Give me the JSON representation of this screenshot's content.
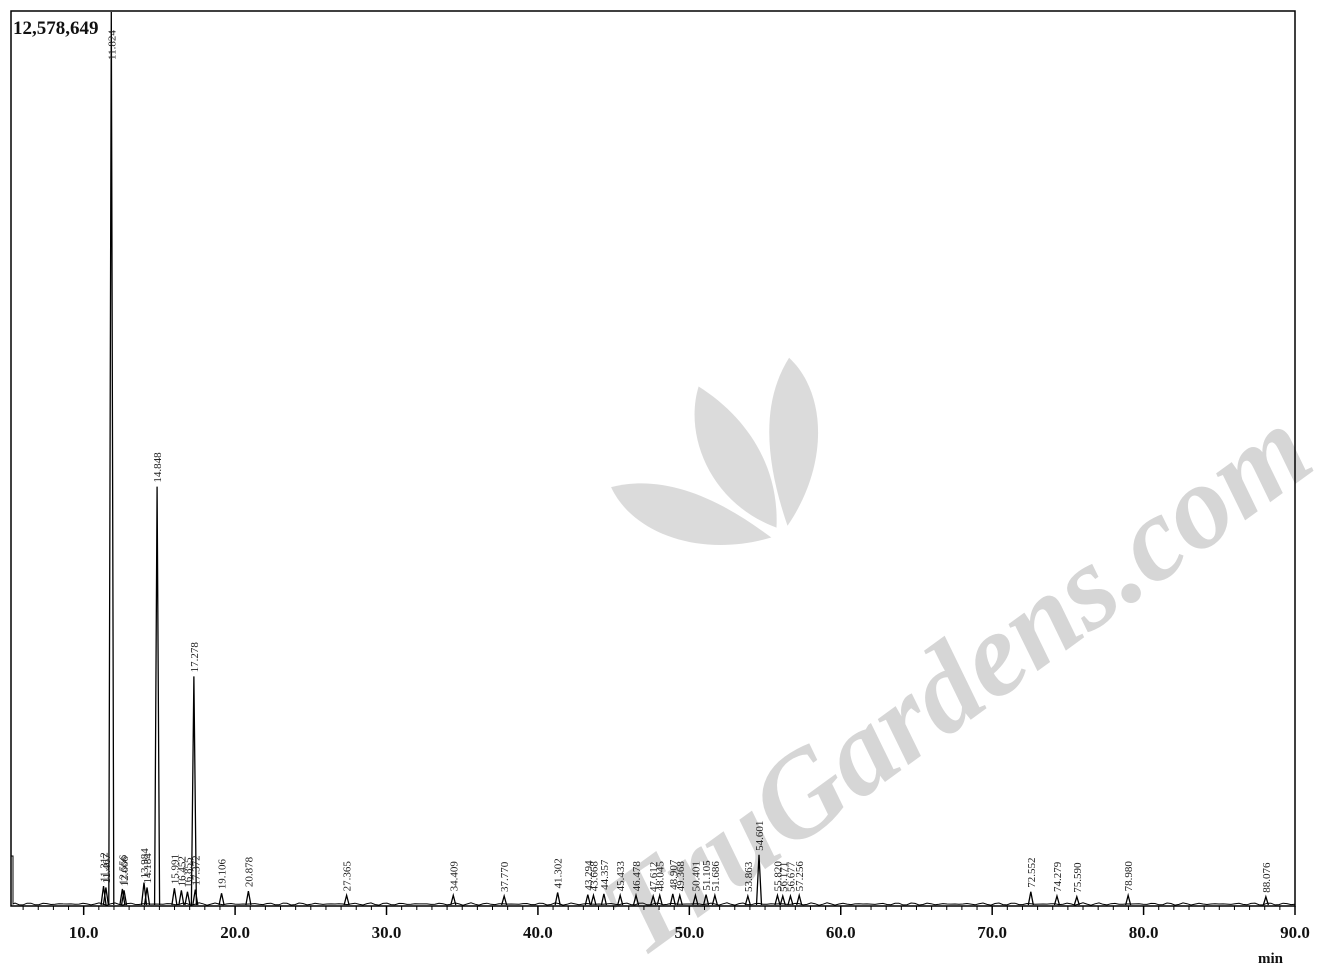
{
  "chart_data": {
    "type": "line",
    "title": "",
    "xlabel": "min",
    "ylabel": "",
    "y_max_label": "12,578,649",
    "xlim": [
      5.2,
      90.0
    ],
    "ylim": [
      0,
      12578649
    ],
    "x_ticks": [
      "10.0",
      "20.0",
      "30.0",
      "40.0",
      "50.0",
      "60.0",
      "70.0",
      "80.0",
      "90.0"
    ],
    "x_tick_values": [
      10,
      20,
      30,
      40,
      50,
      60,
      70,
      80,
      90
    ],
    "grid": false,
    "legend": "none",
    "peaks": [
      {
        "rt": 11.824,
        "label": "11.824",
        "intensity": 12578649
      },
      {
        "rt": 14.848,
        "label": "14.848",
        "intensity": 5900000
      },
      {
        "rt": 17.278,
        "label": "17.278",
        "intensity": 3230000
      },
      {
        "rt": 54.601,
        "label": "54.601",
        "intensity": 720000
      },
      {
        "rt": 11.312,
        "label": "11.312",
        "intensity": 280000
      },
      {
        "rt": 11.467,
        "label": "11.467",
        "intensity": 260000
      },
      {
        "rt": 12.556,
        "label": "12.556",
        "intensity": 240000
      },
      {
        "rt": 12.666,
        "label": "12.666",
        "intensity": 220000
      },
      {
        "rt": 13.984,
        "label": "13.984",
        "intensity": 330000
      },
      {
        "rt": 14.184,
        "label": "14.184",
        "intensity": 260000
      },
      {
        "rt": 15.991,
        "label": "15.991",
        "intensity": 250000
      },
      {
        "rt": 16.452,
        "label": "16.452",
        "intensity": 220000
      },
      {
        "rt": 16.855,
        "label": "16.855",
        "intensity": 200000
      },
      {
        "rt": 17.372,
        "label": "17.372",
        "intensity": 230000
      },
      {
        "rt": 19.106,
        "label": "19.106",
        "intensity": 180000
      },
      {
        "rt": 20.878,
        "label": "20.878",
        "intensity": 210000
      },
      {
        "rt": 27.365,
        "label": "27.365",
        "intensity": 150000
      },
      {
        "rt": 34.409,
        "label": "34.409",
        "intensity": 150000
      },
      {
        "rt": 37.77,
        "label": "37.770",
        "intensity": 140000
      },
      {
        "rt": 41.302,
        "label": "41.302",
        "intensity": 190000
      },
      {
        "rt": 43.294,
        "label": "43.294",
        "intensity": 160000
      },
      {
        "rt": 43.668,
        "label": "43.668",
        "intensity": 150000
      },
      {
        "rt": 44.357,
        "label": "44.357",
        "intensity": 170000
      },
      {
        "rt": 45.433,
        "label": "45.433",
        "intensity": 150000
      },
      {
        "rt": 46.478,
        "label": "46.478",
        "intensity": 150000
      },
      {
        "rt": 47.612,
        "label": "47.612",
        "intensity": 140000
      },
      {
        "rt": 48.045,
        "label": "48.045",
        "intensity": 150000
      },
      {
        "rt": 48.907,
        "label": "48.907",
        "intensity": 170000
      },
      {
        "rt": 49.368,
        "label": "49.368",
        "intensity": 150000
      },
      {
        "rt": 50.401,
        "label": "50.401",
        "intensity": 150000
      },
      {
        "rt": 51.105,
        "label": "51.105",
        "intensity": 160000
      },
      {
        "rt": 51.686,
        "label": "51.686",
        "intensity": 150000
      },
      {
        "rt": 53.863,
        "label": "53.863",
        "intensity": 140000
      },
      {
        "rt": 55.82,
        "label": "55.820",
        "intensity": 150000
      },
      {
        "rt": 56.171,
        "label": "56.171",
        "intensity": 140000
      },
      {
        "rt": 56.677,
        "label": "56.677",
        "intensity": 140000
      },
      {
        "rt": 57.256,
        "label": "57.256",
        "intensity": 150000
      },
      {
        "rt": 72.552,
        "label": "72.552",
        "intensity": 200000
      },
      {
        "rt": 74.279,
        "label": "74.279",
        "intensity": 140000
      },
      {
        "rt": 75.59,
        "label": "75.590",
        "intensity": 130000
      },
      {
        "rt": 78.98,
        "label": "78.980",
        "intensity": 150000
      },
      {
        "rt": 88.076,
        "label": "88.076",
        "intensity": 130000
      }
    ]
  },
  "watermark": {
    "text": "TruGardens.com",
    "color": "#c9c9c9"
  },
  "colors": {
    "trace": "#000000",
    "axis": "#000000",
    "peak_label": "#222222"
  }
}
